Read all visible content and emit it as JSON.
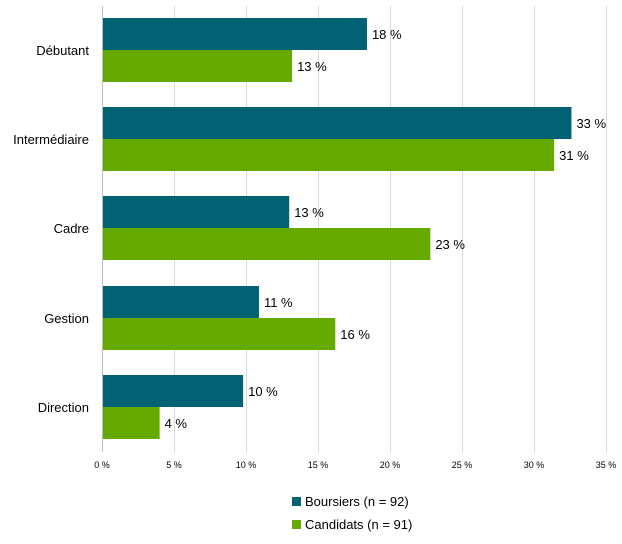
{
  "chart_data": {
    "type": "bar",
    "orientation": "horizontal",
    "categories": [
      "Débutant",
      "Intermédiaire",
      "Cadre",
      "Gestion",
      "Direction"
    ],
    "series": [
      {
        "name": "Boursiers (n = 92)",
        "color": "#006272",
        "values": [
          18.4,
          32.6,
          13.0,
          10.9,
          9.8
        ],
        "labels": [
          "18 %",
          "33 %",
          "13 %",
          "11 %",
          "10 %"
        ]
      },
      {
        "name": "Candidats (n = 91)",
        "color": "#66aa00",
        "values": [
          13.2,
          31.4,
          22.8,
          16.2,
          4.0
        ],
        "labels": [
          "13 %",
          "31 %",
          "23 %",
          "16 %",
          "4 %"
        ]
      }
    ],
    "xlim": [
      0,
      35
    ],
    "xticks": [
      0,
      5,
      10,
      15,
      20,
      25,
      30,
      35
    ],
    "xtick_labels": [
      "0 %",
      "5 %",
      "10 %",
      "15 %",
      "20 %",
      "25 %",
      "30 %",
      "35 %"
    ],
    "grid": "vertical",
    "legend": "bottom"
  }
}
